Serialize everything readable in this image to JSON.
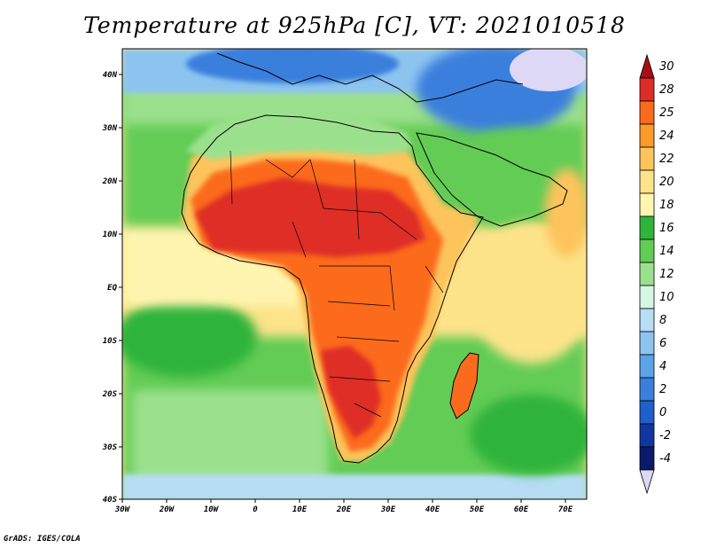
{
  "title": "Temperature at 925hPa [C], VT: 2021010518",
  "credit": "GrADS: IGES/COLA",
  "lat_labels": [
    "40N",
    "30N",
    "20N",
    "10N",
    "EQ",
    "10S",
    "20S",
    "30S",
    "40S"
  ],
  "lon_labels": [
    "30W",
    "20W",
    "10W",
    "0",
    "10E",
    "20E",
    "30E",
    "40E",
    "50E",
    "60E",
    "70E"
  ],
  "colorbar": {
    "levels": [
      "30",
      "28",
      "25",
      "24",
      "22",
      "20",
      "18",
      "16",
      "14",
      "12",
      "10",
      "8",
      "6",
      "4",
      "2",
      "0",
      "-2",
      "-4"
    ],
    "colors": [
      "#a50f15",
      "#de2d26",
      "#fc6a1e",
      "#fd9a2a",
      "#fdc45c",
      "#fde38a",
      "#fff5b0",
      "#2fb43a",
      "#63cc55",
      "#9be18d",
      "#d7f5e4",
      "#b7ddf5",
      "#8cc4ef",
      "#5ca3e8",
      "#3a7fdd",
      "#1f5fcc",
      "#12369f",
      "#0b1a6b",
      "#ddd8f5"
    ]
  },
  "fields": {
    "ocean_cold_north": "#3f7fd9",
    "ocean_mediterranean": "#9fd0ef",
    "ocean_tropical": "#fff5b0",
    "ocean_south_cool": "#9be18d",
    "land_hot": "#de2d26",
    "land_warm": "#fc6a1e",
    "land_mild": "#fdc45c"
  }
}
